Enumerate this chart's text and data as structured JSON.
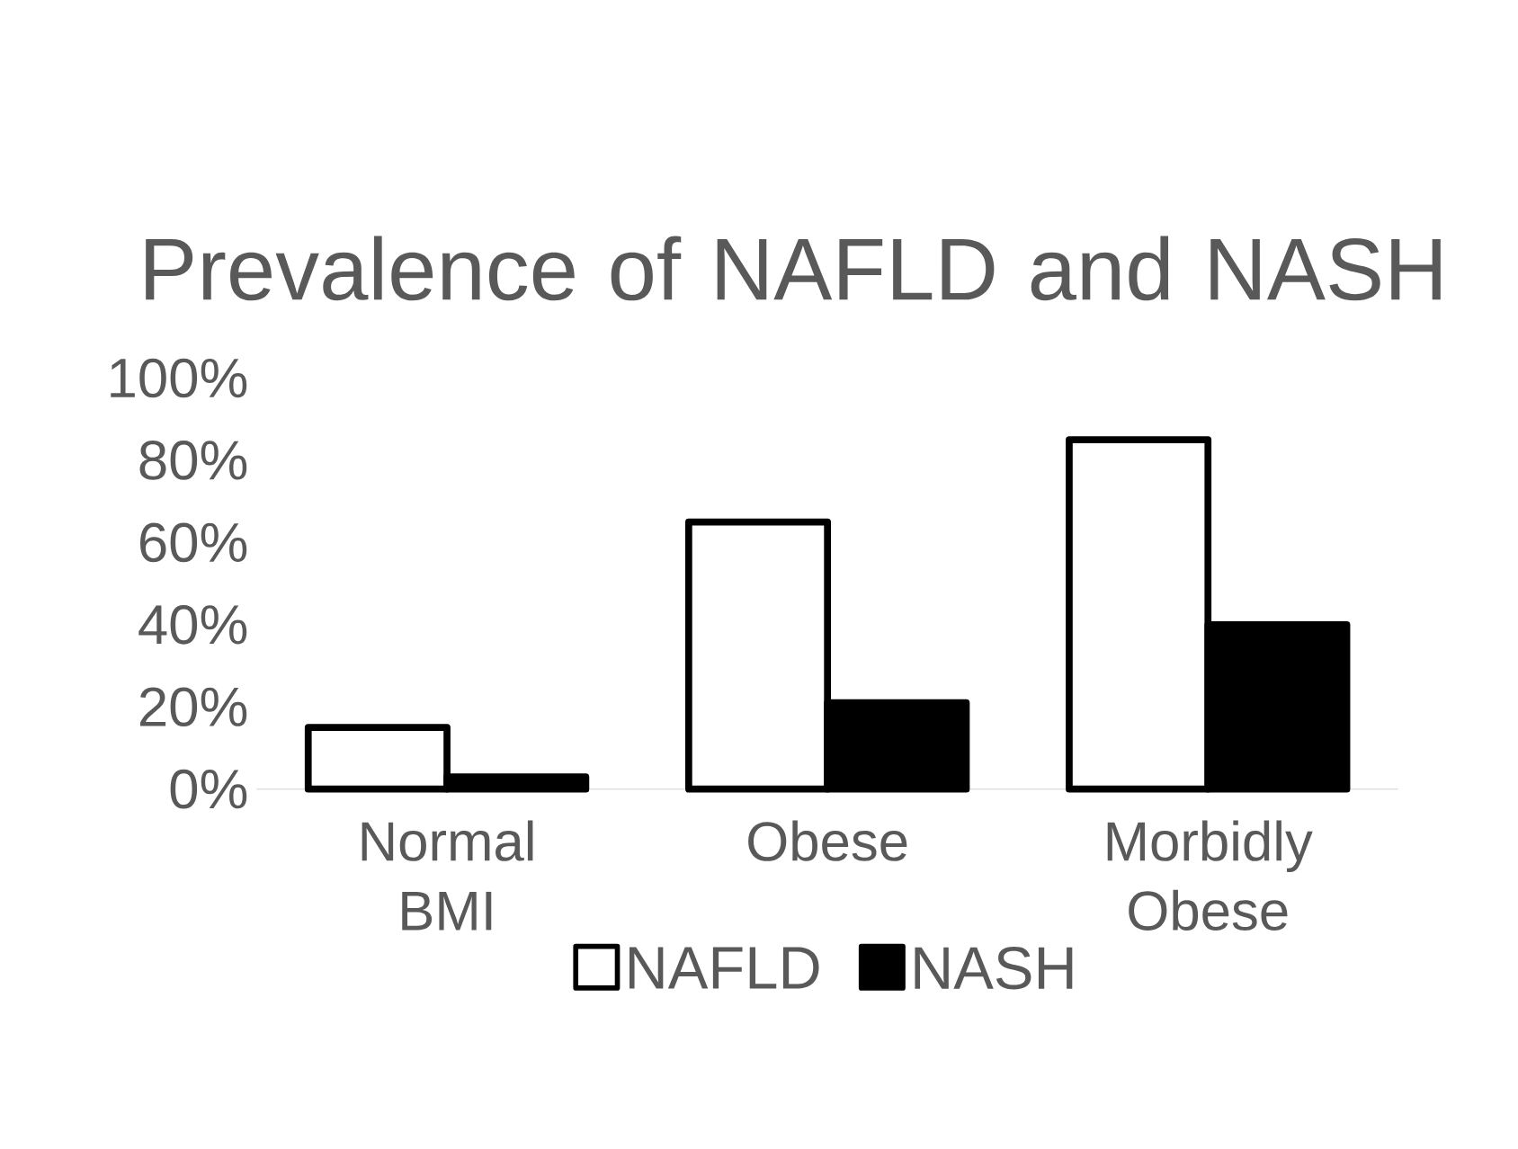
{
  "chart_data": {
    "type": "bar",
    "title": "Prevalence of NAFLD and NASH",
    "categories": [
      "Normal BMI",
      "Obese",
      "Morbidly Obese"
    ],
    "series": [
      {
        "name": "NAFLD",
        "color": "#ffffff",
        "values": [
          15,
          65,
          85
        ]
      },
      {
        "name": "NASH",
        "color": "#000000",
        "values": [
          3,
          21,
          40
        ]
      }
    ],
    "ylim": [
      0,
      100
    ],
    "yticks": [
      {
        "value": 0,
        "label": "0%"
      },
      {
        "value": 20,
        "label": "20%"
      },
      {
        "value": 40,
        "label": "40%"
      },
      {
        "value": 60,
        "label": "60%"
      },
      {
        "value": 80,
        "label": "80%"
      },
      {
        "value": 100,
        "label": "100%"
      }
    ],
    "grid": false,
    "legend": "bottom"
  }
}
